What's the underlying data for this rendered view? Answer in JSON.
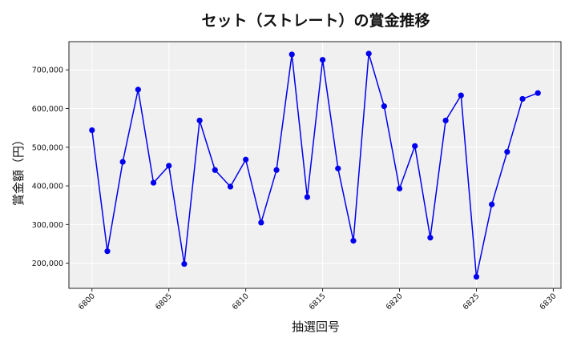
{
  "chart_data": {
    "type": "line",
    "title": "セット（ストレート）の賞金推移",
    "xlabel": "抽選回号",
    "ylabel": "賞金額（円）",
    "x": [
      6800,
      6801,
      6802,
      6803,
      6804,
      6805,
      6806,
      6807,
      6808,
      6809,
      6810,
      6811,
      6812,
      6813,
      6814,
      6815,
      6816,
      6817,
      6818,
      6819,
      6820,
      6821,
      6822,
      6823,
      6824,
      6825,
      6826,
      6827,
      6828,
      6829
    ],
    "series": [
      {
        "values": [
          544000,
          231000,
          462000,
          649000,
          408000,
          452000,
          198000,
          569000,
          441000,
          398000,
          468000,
          305000,
          441000,
          740000,
          371000,
          726000,
          445000,
          258000,
          742000,
          606000,
          393000,
          503000,
          266000,
          569000,
          634000,
          165000,
          352000,
          488000,
          625000,
          640000
        ],
        "color": "#0000ee"
      }
    ],
    "xlim": [
      6798.5,
      6830.5
    ],
    "ylim": [
      135000,
      773000
    ],
    "x_ticks": [
      6800,
      6805,
      6810,
      6815,
      6820,
      6825,
      6830
    ],
    "x_tick_labels": [
      "6800",
      "6805",
      "6810",
      "6815",
      "6820",
      "6825",
      "6830"
    ],
    "y_ticks": [
      200000,
      300000,
      400000,
      500000,
      600000,
      700000
    ],
    "y_tick_labels": [
      "200,000",
      "300,000",
      "400,000",
      "500,000",
      "600,000",
      "700,000"
    ],
    "grid": true,
    "plot_background": "#f0f0f0"
  }
}
